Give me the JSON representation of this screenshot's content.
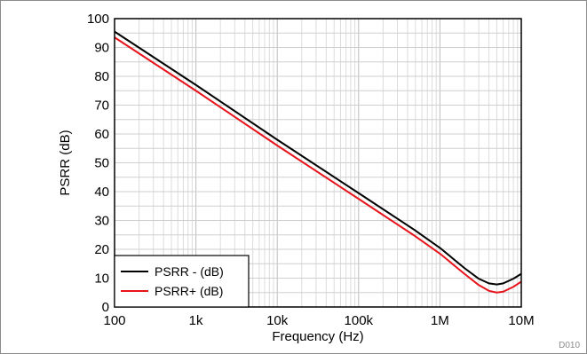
{
  "chart_data": {
    "type": "line",
    "title": "",
    "xlabel": "Frequency (Hz)",
    "ylabel": "PSRR (dB)",
    "x_scale": "log",
    "xlim": [
      100,
      10000000
    ],
    "ylim": [
      0,
      100
    ],
    "grid": true,
    "legend_position": "bottom-left",
    "x_ticks": [
      {
        "value": 100,
        "label": "100"
      },
      {
        "value": 1000,
        "label": "1k"
      },
      {
        "value": 10000,
        "label": "10k"
      },
      {
        "value": 100000,
        "label": "100k"
      },
      {
        "value": 1000000,
        "label": "1M"
      },
      {
        "value": 10000000,
        "label": "10M"
      }
    ],
    "y_ticks": [
      0,
      10,
      20,
      30,
      40,
      50,
      60,
      70,
      80,
      90,
      100
    ],
    "series": [
      {
        "name": "PSRR - (dB)",
        "color": "#000000",
        "points": [
          [
            100,
            95.5
          ],
          [
            1000,
            77
          ],
          [
            10000,
            58
          ],
          [
            100000,
            39.5
          ],
          [
            500000,
            26.5
          ],
          [
            1000000,
            20.5
          ],
          [
            2000000,
            13.5
          ],
          [
            3000000,
            9.8
          ],
          [
            4000000,
            8.2
          ],
          [
            5000000,
            7.8
          ],
          [
            6000000,
            8.2
          ],
          [
            8000000,
            9.8
          ],
          [
            10000000,
            11.5
          ]
        ]
      },
      {
        "name": "PSRR+ (dB)",
        "color": "#e8141b",
        "points": [
          [
            100,
            93.5
          ],
          [
            1000,
            75
          ],
          [
            10000,
            56
          ],
          [
            100000,
            37.5
          ],
          [
            500000,
            24.5
          ],
          [
            1000000,
            18.5
          ],
          [
            2000000,
            11.5
          ],
          [
            3000000,
            7.6
          ],
          [
            4000000,
            5.6
          ],
          [
            5000000,
            5.0
          ],
          [
            6000000,
            5.3
          ],
          [
            8000000,
            7.0
          ],
          [
            10000000,
            8.8
          ]
        ]
      }
    ]
  },
  "figure_code": "D010"
}
